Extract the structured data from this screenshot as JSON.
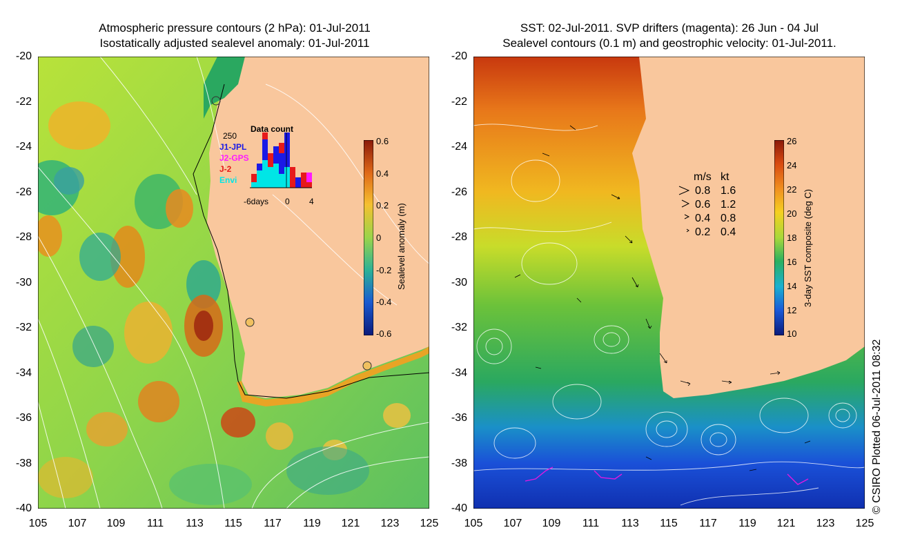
{
  "left_panel": {
    "title_line1": "Atmospheric pressure contours (2 hPa): 01-Jul-2011",
    "title_line2": "Isostatically adjusted sealevel anomaly: 01-Jul-2011",
    "colorbar": {
      "label": "Sealevel anomaly (m)",
      "ticks": [
        "0.6",
        "0.4",
        "0.2",
        "0",
        "-0.2",
        "-0.4",
        "-0.6"
      ]
    },
    "data_count": {
      "title": "Data count",
      "max_label": "250",
      "x_ticks": [
        "-6days",
        "0",
        "4"
      ],
      "sources": [
        {
          "name": "J1-JPL",
          "color": "#1a1ae6"
        },
        {
          "name": "J2-GPS",
          "color": "#ff1aff"
        },
        {
          "name": "J-2",
          "color": "#e61a1a"
        },
        {
          "name": "Envi",
          "color": "#00e6e6"
        }
      ]
    }
  },
  "right_panel": {
    "title_line1": "SST: 02-Jul-2011. SVP drifters (magenta): 26 Jun - 04 Jul",
    "title_line2": "Sealevel contours (0.1 m) and geostrophic velocity: 01-Jul-2011.",
    "colorbar": {
      "label": "3-day SST composite (deg C)",
      "ticks": [
        "26",
        "24",
        "22",
        "20",
        "18",
        "16",
        "14",
        "12",
        "10"
      ]
    },
    "velocity_legend": {
      "header_ms": "m/s",
      "header_kt": "kt",
      "rows": [
        {
          "ms": "0.8",
          "kt": "1.6"
        },
        {
          "ms": "0.6",
          "kt": "1.2"
        },
        {
          "ms": "0.4",
          "kt": "0.8"
        },
        {
          "ms": "0.2",
          "kt": "0.4"
        }
      ]
    }
  },
  "axes": {
    "y_ticks": [
      "-20",
      "-22",
      "-24",
      "-26",
      "-28",
      "-30",
      "-32",
      "-34",
      "-36",
      "-38",
      "-40"
    ],
    "x_ticks": [
      "105",
      "107",
      "109",
      "111",
      "113",
      "115",
      "117",
      "119",
      "121",
      "123",
      "125"
    ]
  },
  "credit": "© CSIRO Plotted 06-Jul-2011 08:32"
}
